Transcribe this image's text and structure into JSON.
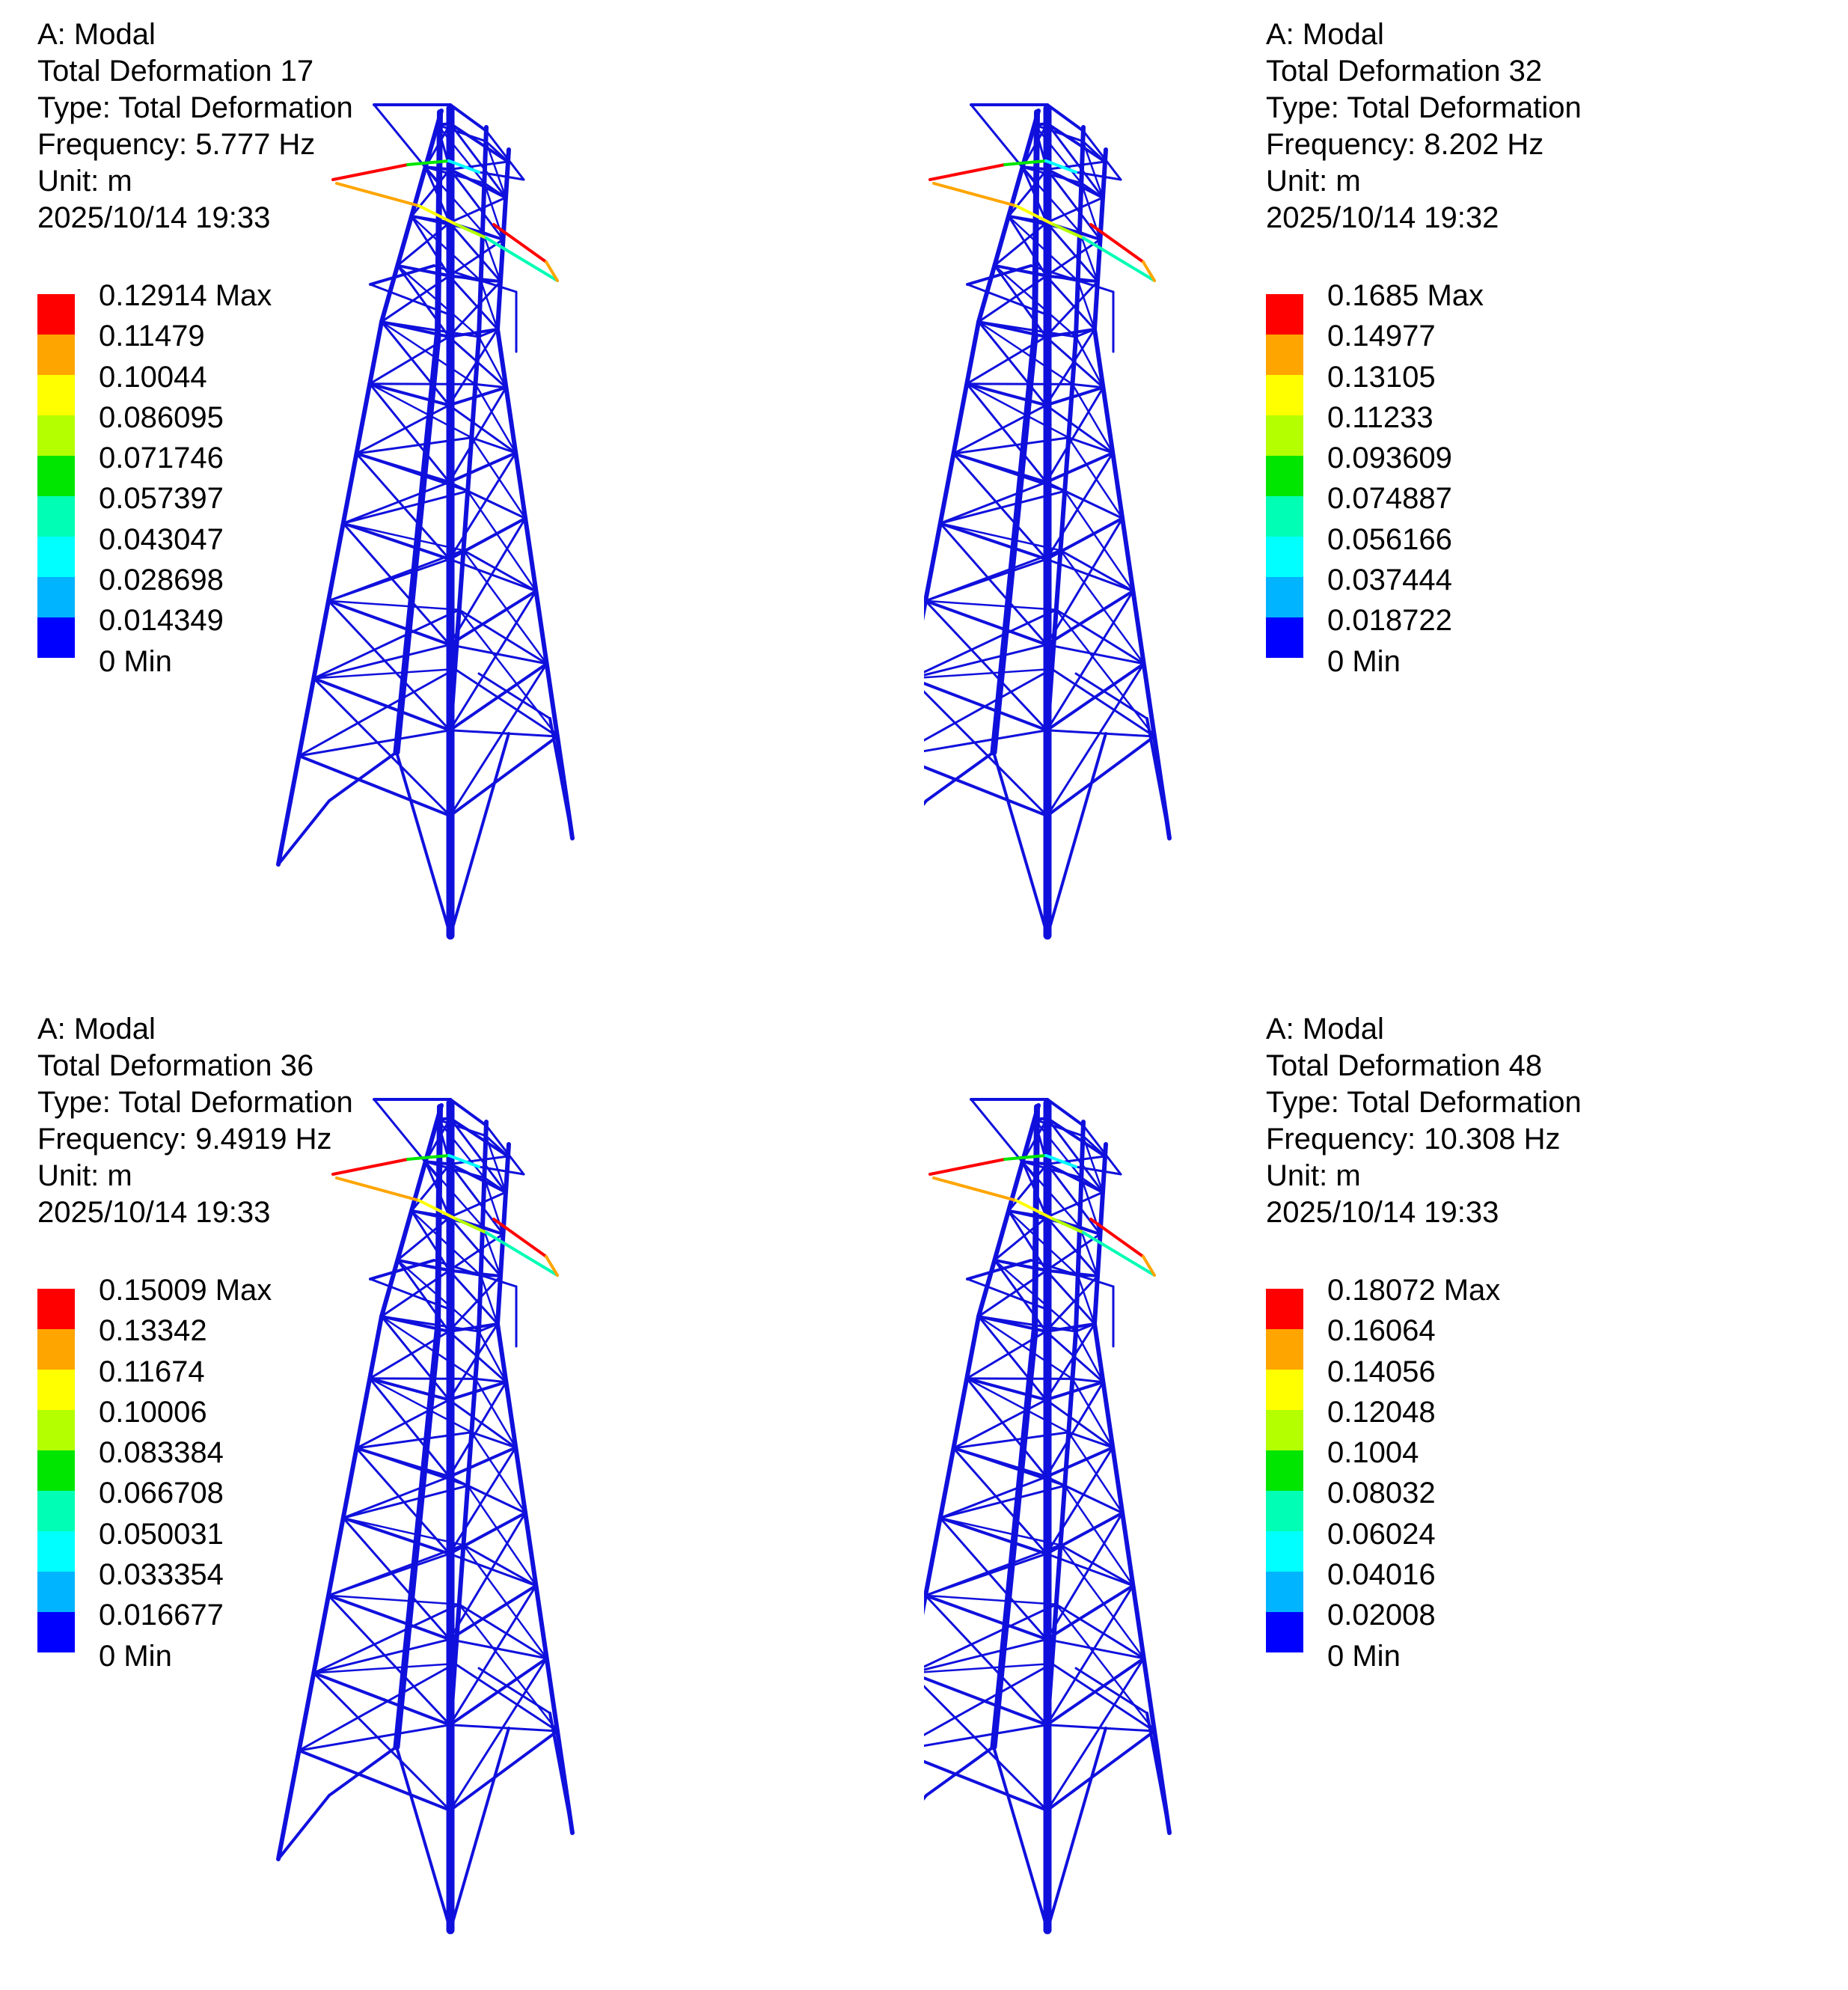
{
  "legend_colors": [
    "#ff0000",
    "#ffa500",
    "#ffff00",
    "#b4ff00",
    "#00e600",
    "#00ffb4",
    "#00ffff",
    "#00b4ff",
    "#0000ff"
  ],
  "tower_color": "#1010dd",
  "panels": [
    {
      "analysis": "A: Modal",
      "result": "Total Deformation 17",
      "type": "Type: Total Deformation",
      "frequency": "Frequency: 5.777 Hz",
      "unit": "Unit: m",
      "timestamp": "2025/10/14 19:33",
      "legend": [
        "0.12914 Max",
        "0.11479",
        "0.10044",
        "0.086095",
        "0.071746",
        "0.057397",
        "0.043047",
        "0.028698",
        "0.014349",
        "0 Min"
      ]
    },
    {
      "analysis": "A: Modal",
      "result": "Total Deformation 32",
      "type": "Type: Total Deformation",
      "frequency": "Frequency: 8.202 Hz",
      "unit": "Unit: m",
      "timestamp": "2025/10/14 19:32",
      "legend": [
        "0.1685 Max",
        "0.14977",
        "0.13105",
        "0.11233",
        "0.093609",
        "0.074887",
        "0.056166",
        "0.037444",
        "0.018722",
        "0 Min"
      ]
    },
    {
      "analysis": "A: Modal",
      "result": "Total Deformation 36",
      "type": "Type: Total Deformation",
      "frequency": "Frequency: 9.4919 Hz",
      "unit": "Unit: m",
      "timestamp": "2025/10/14 19:33",
      "legend": [
        "0.15009 Max",
        "0.13342",
        "0.11674",
        "0.10006",
        "0.083384",
        "0.066708",
        "0.050031",
        "0.033354",
        "0.016677",
        "0 Min"
      ]
    },
    {
      "analysis": "A: Modal",
      "result": "Total Deformation 48",
      "type": "Type: Total Deformation",
      "frequency": "Frequency: 10.308 Hz",
      "unit": "Unit: m",
      "timestamp": "2025/10/14 19:33",
      "legend": [
        "0.18072 Max",
        "0.16064",
        "0.14056",
        "0.12048",
        "0.1004",
        "0.08032",
        "0.06024",
        "0.04016",
        "0.02008",
        "0 Min"
      ]
    }
  ]
}
